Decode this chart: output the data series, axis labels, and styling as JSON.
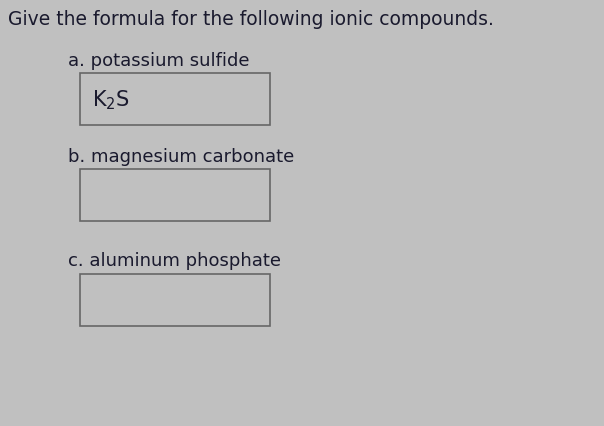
{
  "title": "Give the formula for the following ionic compounds.",
  "background_color": "#c0c0c0",
  "text_color": "#1a1a2e",
  "title_font_size": 13.5,
  "label_font_size": 13,
  "answer_font_size": 15,
  "box_edge_color": "#666666",
  "items": [
    {
      "label": "a. potassium sulfide",
      "has_answer": true
    },
    {
      "label": "b. magnesium carbonate",
      "has_answer": false
    },
    {
      "label": "c. aluminum phosphate",
      "has_answer": false
    }
  ]
}
